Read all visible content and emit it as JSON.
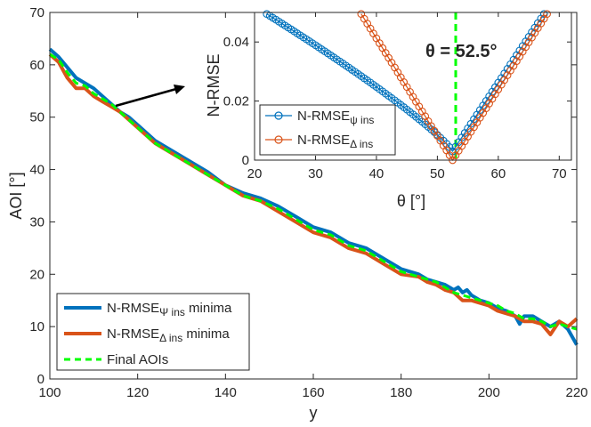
{
  "chart_data": [
    {
      "type": "line",
      "title": "",
      "xlabel": "y",
      "ylabel": "AOI [°]",
      "xlim": [
        100,
        220
      ],
      "ylim": [
        0,
        70
      ],
      "xticks": [
        "100",
        "120",
        "140",
        "160",
        "180",
        "200",
        "220"
      ],
      "yticks": [
        "0",
        "10",
        "20",
        "30",
        "40",
        "50",
        "60",
        "70"
      ],
      "grid": false,
      "legend_position": "bottom-left",
      "series": [
        {
          "name": "N-RMSE",
          "sub": "Ψ ins",
          "suffix": " minima",
          "color": "#0072bd",
          "style": "solid",
          "x": [
            100,
            102,
            104,
            106,
            108,
            110,
            112,
            114,
            116,
            118,
            120,
            124,
            128,
            132,
            136,
            140,
            144,
            148,
            152,
            156,
            160,
            164,
            168,
            172,
            176,
            180,
            184,
            186,
            188,
            190,
            192,
            193,
            194,
            195,
            196,
            198,
            200,
            202,
            204,
            206,
            207,
            208,
            210,
            212,
            214,
            216,
            218,
            220
          ],
          "values": [
            63,
            61.5,
            59.5,
            57.5,
            56.5,
            55.5,
            54,
            52.5,
            51,
            50,
            48.5,
            45.5,
            43.5,
            41.5,
            39.5,
            37,
            35.5,
            34.5,
            33,
            31,
            29,
            28,
            26,
            25,
            23,
            21,
            20,
            19,
            18.5,
            18,
            17,
            17.5,
            16.5,
            17,
            16,
            15,
            14.5,
            13.5,
            13,
            12,
            10.5,
            12,
            12,
            11,
            10,
            11,
            9.5,
            6.5
          ]
        },
        {
          "name": "N-RMSE",
          "sub": "Δ ins",
          "suffix": " minima",
          "color": "#d95319",
          "style": "solid",
          "x": [
            100,
            102,
            104,
            106,
            108,
            110,
            112,
            114,
            116,
            118,
            120,
            124,
            128,
            132,
            136,
            140,
            144,
            148,
            152,
            156,
            160,
            164,
            168,
            172,
            176,
            180,
            184,
            186,
            188,
            190,
            192,
            194,
            196,
            198,
            200,
            202,
            204,
            206,
            208,
            210,
            212,
            214,
            216,
            218,
            220
          ],
          "values": [
            62,
            60.5,
            57.5,
            55.5,
            55.5,
            54,
            53,
            52,
            51,
            49.5,
            48,
            45,
            43,
            41,
            39,
            37,
            35,
            34,
            32,
            30,
            28,
            27,
            25,
            24,
            22,
            20,
            19.5,
            18.5,
            18,
            17,
            16.5,
            15,
            15,
            14.5,
            14,
            13,
            12.5,
            12,
            11,
            11,
            10.5,
            8.5,
            11,
            10,
            11.5
          ]
        },
        {
          "name": "Final AOIs",
          "sub": "",
          "suffix": "",
          "color": "#00ff00",
          "style": "dashed",
          "x": [
            100,
            102,
            104,
            106,
            108,
            110,
            112,
            114,
            116,
            118,
            120,
            124,
            128,
            132,
            136,
            140,
            144,
            148,
            152,
            156,
            160,
            164,
            168,
            172,
            176,
            180,
            184,
            188,
            190,
            192,
            194,
            196,
            198,
            200,
            202,
            204,
            206,
            208,
            210,
            212,
            214,
            216,
            218,
            220
          ],
          "values": [
            62,
            61,
            58.5,
            56.5,
            56,
            54.5,
            53.5,
            52.5,
            51,
            49.5,
            48,
            45,
            43,
            41,
            39,
            37,
            35,
            34,
            32.5,
            30.5,
            28.5,
            27.5,
            25.5,
            24.5,
            22.5,
            20.5,
            19.5,
            18.5,
            17.5,
            16.5,
            16,
            15.5,
            15,
            14.5,
            14,
            13,
            12.5,
            11.5,
            11.5,
            11,
            10,
            10.5,
            10,
            9.5
          ]
        }
      ]
    },
    {
      "type": "scatter",
      "title": "",
      "xlabel": "θ [°]",
      "ylabel": "N-RMSE",
      "xlim": [
        20,
        72
      ],
      "ylim": [
        0,
        0.05
      ],
      "xticks": [
        "20",
        "30",
        "40",
        "50",
        "60",
        "70"
      ],
      "yticks": [
        "0",
        "0.02",
        "0.04"
      ],
      "grid": false,
      "legend_position": "bottom-left",
      "annotation": "θ = 52.5°",
      "vline": 52.5,
      "series": [
        {
          "name": "N-RMSE",
          "sub": "ψ ins",
          "color": "#0072bd",
          "marker": "circle",
          "x_start": 22,
          "x_end": 67.5,
          "x_step": 0.5,
          "min_x": 52.5,
          "left_at_start": 0.0495,
          "min_value": 0.003,
          "right_at_end": 0.0495
        },
        {
          "name": "N-RMSE",
          "sub": "Δ ins",
          "color": "#d95319",
          "marker": "circle",
          "x_start": 37.5,
          "x_end": 68,
          "x_step": 0.5,
          "min_x": 52.5,
          "left_at_start": 0.0495,
          "min_value": 0.0,
          "right_at_end": 0.0495
        }
      ]
    }
  ]
}
